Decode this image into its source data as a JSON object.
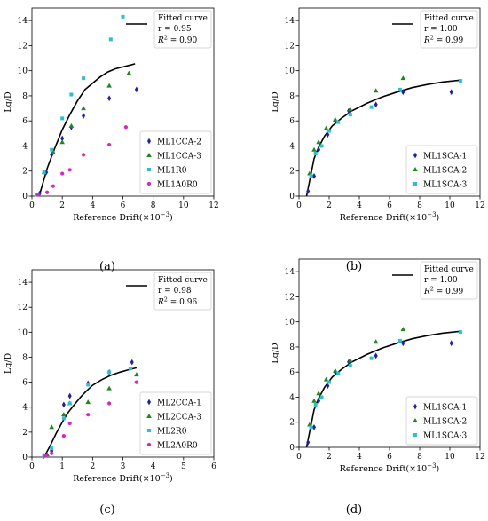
{
  "figure": {
    "panel_labels": [
      "(a)",
      "(b)",
      "(c)",
      "(d)"
    ]
  },
  "chart_data": [
    {
      "type": "scatter",
      "panel": "(a)",
      "xlabel": "Reference Drift(×10",
      "xlabel_exp": "−3",
      "xlabel_close": ")",
      "ylabel": "Lg/D",
      "xlim": [
        0,
        12
      ],
      "ylim": [
        0,
        15
      ],
      "xticks": [
        0,
        2,
        4,
        6,
        8,
        10,
        12
      ],
      "yticks": [
        0,
        2,
        4,
        6,
        8,
        10,
        12,
        14
      ],
      "grid": false,
      "fit": {
        "label": "Fitted curve",
        "r_text": "r = 0.95",
        "r2_value": "= 0.90",
        "x": [
          0.5,
          1.0,
          1.5,
          2.0,
          2.5,
          3.0,
          3.5,
          4.0,
          4.5,
          5.0,
          5.5,
          6.0,
          6.5,
          6.8
        ],
        "y": [
          0.1,
          2.2,
          3.8,
          5.3,
          6.5,
          7.6,
          8.5,
          9.0,
          9.5,
          9.9,
          10.15,
          10.3,
          10.45,
          10.55
        ]
      },
      "legend_position": "bottom-right",
      "series": [
        {
          "name": "ML1CCA-2",
          "marker": "diamond",
          "color": "#1f1fb4",
          "x": [
            0.5,
            0.95,
            1.3,
            2.0,
            2.6,
            3.4,
            5.1,
            6.9
          ],
          "y": [
            0.2,
            1.9,
            3.3,
            4.6,
            5.5,
            6.4,
            7.8,
            8.5
          ]
        },
        {
          "name": "ML1CCA-3",
          "marker": "triangle",
          "color": "#1a8a1a",
          "x": [
            0.8,
            1.4,
            2.0,
            2.6,
            3.4,
            5.1,
            6.4
          ],
          "y": [
            1.9,
            3.5,
            4.3,
            5.6,
            7.0,
            8.8,
            9.8
          ]
        },
        {
          "name": "ML1R0",
          "marker": "square",
          "color": "#22c4d4",
          "x": [
            0.3,
            0.8,
            1.3,
            2.0,
            2.6,
            3.4,
            5.2,
            6.0
          ],
          "y": [
            0.1,
            1.9,
            3.7,
            6.2,
            8.1,
            9.4,
            12.5,
            14.3
          ]
        },
        {
          "name": "ML1A0R0",
          "marker": "circle",
          "color": "#e020c8",
          "x": [
            0.4,
            1.0,
            1.4,
            2.0,
            2.5,
            3.4,
            5.1,
            6.2
          ],
          "y": [
            0.1,
            0.3,
            0.8,
            1.8,
            2.1,
            3.3,
            4.1,
            5.5
          ]
        }
      ]
    },
    {
      "type": "scatter",
      "panel": "(b)",
      "xlabel": "Reference Drift(×10",
      "xlabel_exp": "−3",
      "xlabel_close": ")",
      "ylabel": "Lg/D",
      "xlim": [
        0,
        12
      ],
      "ylim": [
        0,
        15
      ],
      "xticks": [
        0,
        2,
        4,
        6,
        8,
        10,
        12
      ],
      "yticks": [
        0,
        2,
        4,
        6,
        8,
        10,
        12,
        14
      ],
      "grid": false,
      "fit": {
        "label": "Fitted curve",
        "r_text": "r = 1.00",
        "r2_value": "= 0.99",
        "x": [
          0.5,
          0.8,
          1.0,
          1.3,
          1.7,
          2.2,
          2.8,
          3.5,
          4.5,
          5.5,
          6.5,
          7.5,
          8.5,
          9.5,
          10.7
        ],
        "y": [
          0.0,
          1.8,
          3.0,
          3.9,
          4.8,
          5.6,
          6.2,
          6.8,
          7.4,
          7.9,
          8.3,
          8.65,
          8.9,
          9.1,
          9.25
        ]
      },
      "legend_position": "bottom-right",
      "series": [
        {
          "name": "ML1SCA-1",
          "marker": "diamond",
          "color": "#1f1fb4",
          "x": [
            0.6,
            1.0,
            1.3,
            1.9,
            2.4,
            3.3,
            5.1,
            6.9,
            10.1
          ],
          "y": [
            0.4,
            1.6,
            3.7,
            4.9,
            6.0,
            6.8,
            7.3,
            8.3,
            8.3
          ]
        },
        {
          "name": "ML1SCA-2",
          "marker": "triangle",
          "color": "#1a8a1a",
          "x": [
            0.7,
            1.0,
            1.3,
            1.8,
            2.4,
            3.4,
            5.1,
            6.9
          ],
          "y": [
            1.8,
            3.7,
            4.3,
            5.4,
            6.1,
            6.9,
            8.4,
            9.4
          ]
        },
        {
          "name": "ML1SCA-3",
          "marker": "square",
          "color": "#22c4d4",
          "x": [
            0.8,
            1.1,
            1.5,
            2.0,
            2.6,
            3.4,
            4.8,
            6.7,
            10.7
          ],
          "y": [
            1.6,
            3.4,
            4.0,
            5.2,
            5.9,
            6.5,
            7.1,
            8.5,
            9.2
          ]
        }
      ]
    },
    {
      "type": "scatter",
      "panel": "(c)",
      "xlabel": "Reference Drift(×10",
      "xlabel_exp": "−3",
      "xlabel_close": ")",
      "ylabel": "Lg/D",
      "xlim": [
        0,
        6
      ],
      "ylim": [
        0,
        15
      ],
      "xticks": [
        0,
        1,
        2,
        3,
        4,
        5,
        6
      ],
      "yticks": [
        0,
        2,
        4,
        6,
        8,
        10,
        12,
        14
      ],
      "grid": false,
      "fit": {
        "label": "Fitted curve",
        "r_text": "r = 0.98",
        "r2_value": "= 0.96",
        "x": [
          0.4,
          0.6,
          0.8,
          1.0,
          1.2,
          1.4,
          1.6,
          1.8,
          2.0,
          2.3,
          2.6,
          2.9,
          3.2,
          3.45
        ],
        "y": [
          0.0,
          0.9,
          1.9,
          2.8,
          3.6,
          4.2,
          4.8,
          5.3,
          5.75,
          6.2,
          6.55,
          6.8,
          7.0,
          7.15
        ]
      },
      "legend_position": "bottom-right",
      "series": [
        {
          "name": "ML2CCA-1",
          "marker": "diamond",
          "color": "#1f1fb4",
          "x": [
            0.4,
            0.65,
            1.05,
            1.25,
            1.85,
            2.55,
            3.3
          ],
          "y": [
            0.1,
            0.5,
            4.2,
            4.9,
            5.9,
            6.8,
            7.6
          ]
        },
        {
          "name": "ML2CCA-3",
          "marker": "triangle",
          "color": "#1a8a1a",
          "x": [
            0.5,
            0.65,
            1.05,
            1.25,
            1.85,
            2.55,
            3.45
          ],
          "y": [
            0.2,
            2.4,
            3.4,
            4.3,
            4.4,
            5.5,
            6.6
          ]
        },
        {
          "name": "ML2R0",
          "marker": "square",
          "color": "#22c4d4",
          "x": [
            0.4,
            0.65,
            1.05,
            1.25,
            1.85,
            2.55,
            3.25
          ],
          "y": [
            0.1,
            0.7,
            3.1,
            4.3,
            5.8,
            6.8,
            7.1
          ]
        },
        {
          "name": "ML2A0R0",
          "marker": "circle",
          "color": "#e020c8",
          "x": [
            0.45,
            0.65,
            1.05,
            1.25,
            1.85,
            2.55,
            3.45
          ],
          "y": [
            0.1,
            0.3,
            1.7,
            2.7,
            3.4,
            4.3,
            6.0
          ]
        }
      ]
    },
    {
      "type": "scatter",
      "panel": "(d)",
      "xlabel": "Reference Drift(×10",
      "xlabel_exp": "−3",
      "xlabel_close": ")",
      "ylabel": "Lg/D",
      "xlim": [
        0,
        12
      ],
      "ylim": [
        0,
        15
      ],
      "xticks": [
        0,
        2,
        4,
        6,
        8,
        10,
        12
      ],
      "yticks": [
        0,
        2,
        4,
        6,
        8,
        10,
        12,
        14
      ],
      "grid": false,
      "fit": {
        "label": "Fitted curve",
        "r_text": "r = 1.00",
        "r2_value": "= 0.99",
        "x": [
          0.5,
          0.8,
          1.0,
          1.3,
          1.7,
          2.2,
          2.8,
          3.5,
          4.5,
          5.5,
          6.5,
          7.5,
          8.5,
          9.5,
          10.7
        ],
        "y": [
          0.0,
          1.8,
          3.0,
          3.9,
          4.8,
          5.6,
          6.2,
          6.8,
          7.4,
          7.9,
          8.3,
          8.65,
          8.9,
          9.1,
          9.25
        ]
      },
      "legend_position": "bottom-right",
      "series": [
        {
          "name": "ML1SCA-1",
          "marker": "diamond",
          "color": "#1f1fb4",
          "x": [
            0.6,
            1.0,
            1.3,
            1.9,
            2.4,
            3.3,
            5.1,
            6.9,
            10.1
          ],
          "y": [
            0.4,
            1.6,
            3.7,
            4.9,
            6.0,
            6.8,
            7.3,
            8.3,
            8.3
          ]
        },
        {
          "name": "ML1SCA-2",
          "marker": "triangle",
          "color": "#1a8a1a",
          "x": [
            0.7,
            1.0,
            1.3,
            1.8,
            2.4,
            3.4,
            5.1,
            6.9
          ],
          "y": [
            1.8,
            3.7,
            4.3,
            5.4,
            6.1,
            6.9,
            8.4,
            9.4
          ]
        },
        {
          "name": "ML1SCA-3",
          "marker": "square",
          "color": "#22c4d4",
          "x": [
            0.8,
            1.1,
            1.5,
            2.0,
            2.6,
            3.4,
            4.8,
            6.7,
            10.7
          ],
          "y": [
            1.6,
            3.4,
            4.0,
            5.2,
            5.9,
            6.5,
            7.1,
            8.5,
            9.2
          ]
        }
      ]
    }
  ]
}
